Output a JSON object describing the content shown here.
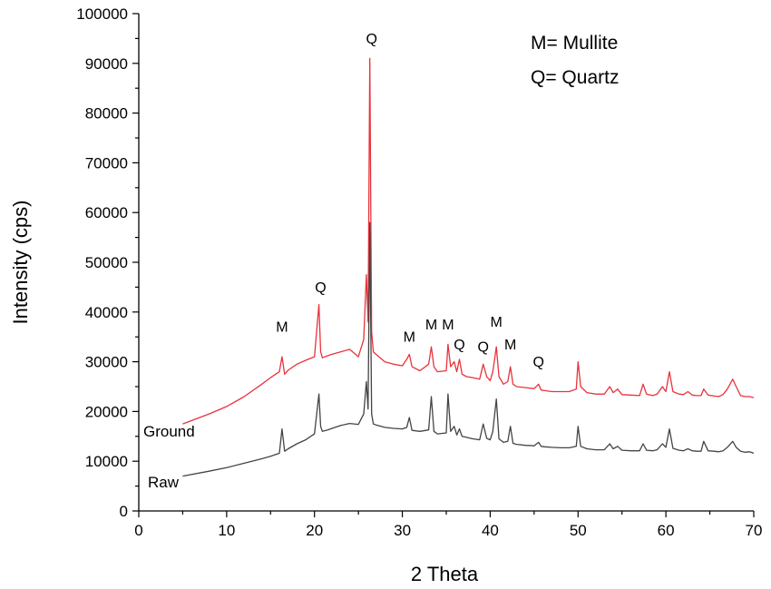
{
  "chart_data": {
    "type": "line",
    "xlabel": "2 Theta",
    "ylabel": "Intensity (cps)",
    "xlim": [
      0,
      70
    ],
    "ylim": [
      0,
      100000
    ],
    "xticks": [
      0,
      10,
      20,
      30,
      40,
      50,
      60,
      70
    ],
    "yticks": [
      0,
      10000,
      20000,
      30000,
      40000,
      50000,
      60000,
      70000,
      80000,
      90000,
      100000
    ],
    "legend": [
      "M= Mullite",
      "Q= Quartz"
    ],
    "series": [
      {
        "name": "Ground",
        "color": "#e8333b",
        "x": [
          5,
          8,
          10,
          12,
          14,
          15,
          16,
          16.3,
          16.6,
          17,
          18,
          19,
          20,
          20.5,
          20.7,
          20.9,
          21.5,
          22,
          23,
          24,
          25,
          25.6,
          25.9,
          26.1,
          26.3,
          26.5,
          26.7,
          27,
          28,
          29,
          30,
          30.5,
          30.8,
          31.1,
          32,
          33,
          33.3,
          33.6,
          34,
          35,
          35.2,
          35.5,
          35.9,
          36.2,
          36.5,
          36.8,
          37.3,
          38,
          38.8,
          39.2,
          39.6,
          40,
          40.3,
          40.7,
          41,
          41.5,
          42,
          42.3,
          42.6,
          43,
          44,
          45,
          45.5,
          45.8,
          46.2,
          47,
          48,
          49,
          49.8,
          50,
          50.3,
          51,
          52,
          53,
          53.6,
          54,
          54.5,
          55,
          56,
          57,
          57.4,
          57.8,
          58.5,
          59,
          59.6,
          60,
          60.4,
          60.8,
          61.5,
          62,
          62.5,
          63,
          63.5,
          64,
          64.3,
          64.8,
          65.5,
          66,
          66.5,
          67,
          67.6,
          68,
          68.5,
          69,
          69.5,
          70
        ],
        "values": [
          17500,
          19500,
          21000,
          23000,
          25500,
          26800,
          28000,
          31000,
          27500,
          28300,
          29500,
          30300,
          31000,
          41500,
          32000,
          30800,
          31200,
          31500,
          32000,
          32500,
          31000,
          34500,
          47500,
          38000,
          91000,
          36000,
          32000,
          31500,
          30000,
          29500,
          29200,
          30500,
          31500,
          29000,
          28200,
          29500,
          33000,
          29000,
          28000,
          28200,
          33500,
          29000,
          30000,
          28000,
          30500,
          27500,
          27000,
          26800,
          26500,
          29500,
          27000,
          26200,
          28000,
          33000,
          27000,
          25500,
          26000,
          29000,
          25500,
          25000,
          24800,
          24600,
          25500,
          24300,
          24200,
          24000,
          24000,
          24000,
          24500,
          30000,
          25000,
          23800,
          23500,
          23500,
          25000,
          23800,
          24500,
          23400,
          23300,
          23200,
          25500,
          23500,
          23200,
          23500,
          25000,
          24000,
          28000,
          24000,
          23500,
          23400,
          24000,
          23300,
          23200,
          23200,
          24500,
          23300,
          23100,
          23000,
          23400,
          24500,
          26500,
          25000,
          23200,
          23000,
          23000,
          22800
        ]
      },
      {
        "name": "Raw",
        "color": "#444444",
        "x": [
          5,
          8,
          10,
          12,
          14,
          15,
          16,
          16.3,
          16.6,
          17,
          18,
          19,
          20,
          20.5,
          20.7,
          20.9,
          21.5,
          22,
          23,
          24,
          25,
          25.6,
          25.9,
          26.1,
          26.3,
          26.5,
          26.7,
          27,
          28,
          29,
          30,
          30.5,
          30.8,
          31.1,
          32,
          33,
          33.3,
          33.6,
          34,
          35,
          35.2,
          35.5,
          35.9,
          36.2,
          36.5,
          36.8,
          37.3,
          38,
          38.8,
          39.2,
          39.6,
          40,
          40.3,
          40.7,
          41,
          41.5,
          42,
          42.3,
          42.6,
          43,
          44,
          45,
          45.5,
          45.8,
          46.2,
          47,
          48,
          49,
          49.8,
          50,
          50.3,
          51,
          52,
          53,
          53.6,
          54,
          54.5,
          55,
          56,
          57,
          57.4,
          57.8,
          58.5,
          59,
          59.6,
          60,
          60.4,
          60.8,
          61.5,
          62,
          62.5,
          63,
          63.5,
          64,
          64.3,
          64.8,
          65.5,
          66,
          66.5,
          67,
          67.6,
          68,
          68.5,
          69,
          69.5,
          70
        ],
        "values": [
          7000,
          8000,
          8700,
          9600,
          10500,
          11000,
          11600,
          16500,
          12000,
          12500,
          13500,
          14300,
          15500,
          23500,
          17000,
          16000,
          16300,
          16600,
          17200,
          17600,
          17400,
          19500,
          26000,
          20500,
          58000,
          19500,
          17500,
          17300,
          16800,
          16600,
          16500,
          16800,
          18800,
          16200,
          16000,
          16300,
          23000,
          16000,
          15500,
          15700,
          23500,
          16000,
          17000,
          15300,
          16500,
          15000,
          14800,
          14500,
          14300,
          17500,
          14600,
          14300,
          16000,
          22500,
          14500,
          13800,
          14000,
          17000,
          13600,
          13400,
          13200,
          13100,
          13800,
          13000,
          12900,
          12800,
          12700,
          12700,
          13000,
          17000,
          13000,
          12500,
          12300,
          12300,
          13500,
          12500,
          13000,
          12200,
          12100,
          12100,
          13500,
          12200,
          12100,
          12300,
          13500,
          12800,
          16500,
          12600,
          12200,
          12100,
          12500,
          12100,
          12000,
          12000,
          14000,
          12100,
          12000,
          11900,
          12100,
          12800,
          14000,
          12800,
          12000,
          11800,
          11900,
          11600
        ]
      }
    ],
    "annotations": [
      {
        "text": "M",
        "x": 16.3,
        "y": 36000
      },
      {
        "text": "Q",
        "x": 20.7,
        "y": 44000
      },
      {
        "text": "Q",
        "x": 26.5,
        "y": 94000
      },
      {
        "text": "M",
        "x": 30.8,
        "y": 34000
      },
      {
        "text": "M",
        "x": 33.3,
        "y": 36500
      },
      {
        "text": "M",
        "x": 35.2,
        "y": 36500
      },
      {
        "text": "Q",
        "x": 36.5,
        "y": 32500
      },
      {
        "text": "Q",
        "x": 39.2,
        "y": 32000
      },
      {
        "text": "M",
        "x": 40.7,
        "y": 37000
      },
      {
        "text": "M",
        "x": 42.3,
        "y": 32500
      },
      {
        "text": "Q",
        "x": 45.5,
        "y": 29000
      }
    ]
  }
}
